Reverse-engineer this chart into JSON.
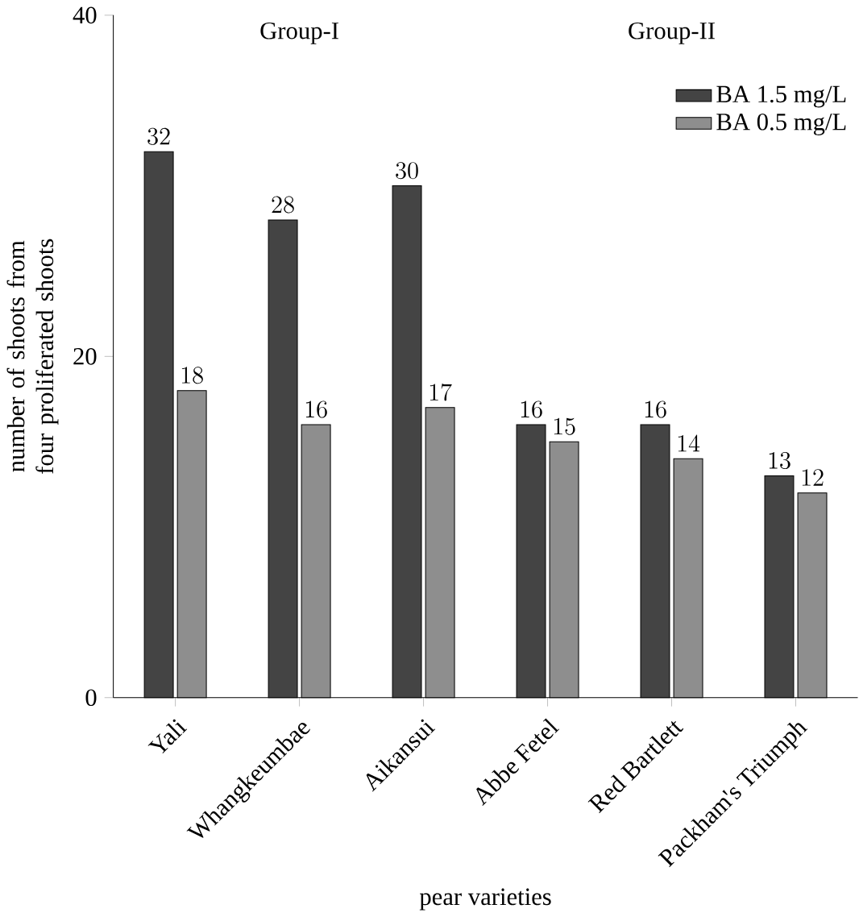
{
  "chart_data": {
    "type": "bar",
    "xlabel": "pear varieties",
    "ylabel": "number of shoots from four proliferated shoots",
    "categories": [
      "Yali",
      "Whangkeumbae",
      "Aikansui",
      "Abbe Fetel",
      "Red Bartlett",
      "Packham's Triumph"
    ],
    "series": [
      {
        "name": "BA 1.5 mg/L",
        "color": "#444444",
        "values": [
          32,
          28,
          30,
          16,
          16,
          13
        ]
      },
      {
        "name": "BA 0.5 mg/L",
        "color": "#8e8e8e",
        "values": [
          18,
          16,
          17,
          15,
          14,
          12
        ]
      }
    ],
    "ylim": [
      0,
      40
    ],
    "yticks": [
      0,
      20,
      40
    ],
    "legend": "top right",
    "data_labels": true,
    "annotations": [
      "Group-I",
      "Group-II"
    ]
  }
}
